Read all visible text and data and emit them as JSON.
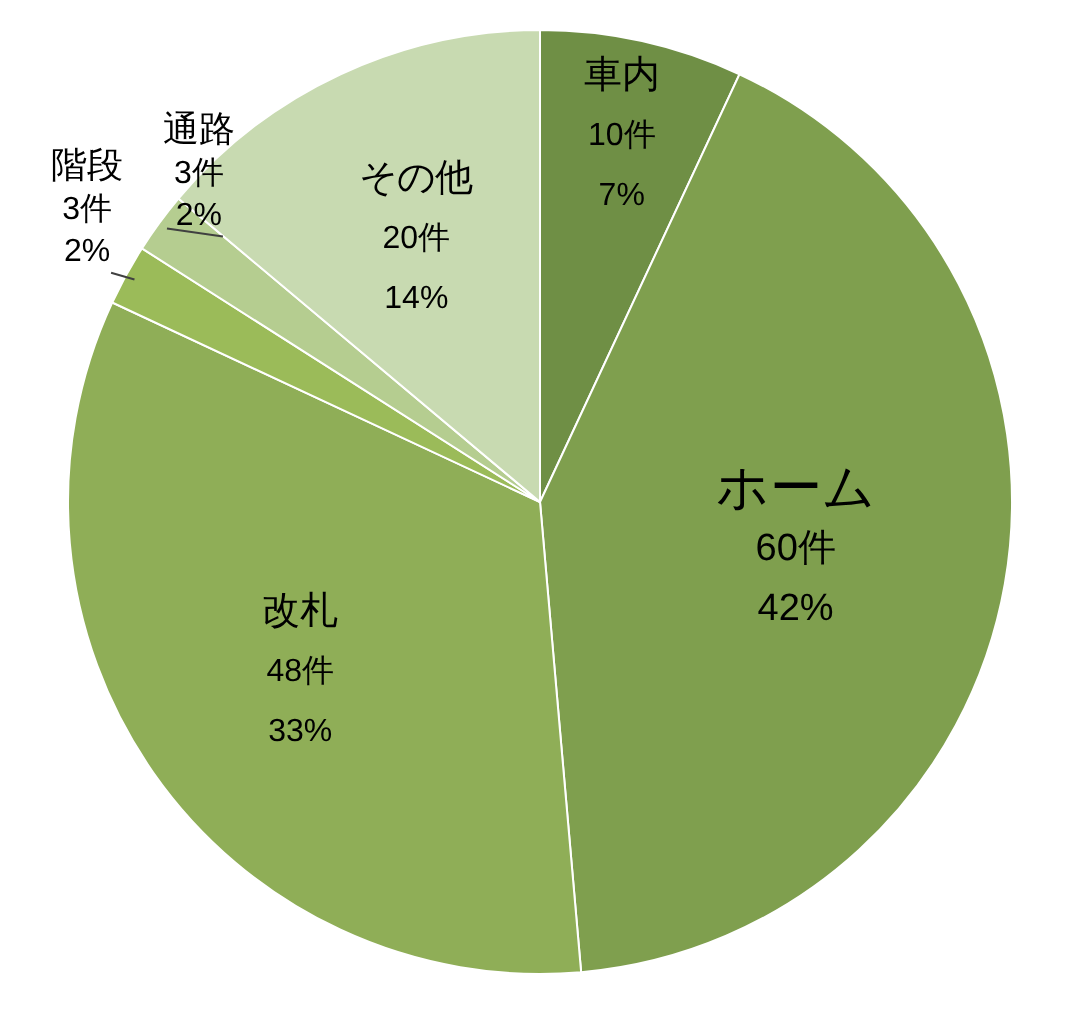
{
  "chart_data": {
    "type": "pie",
    "categories": [
      "車内",
      "ホーム",
      "改札",
      "階段",
      "通路",
      "その他"
    ],
    "values": [
      10,
      60,
      48,
      3,
      3,
      20
    ],
    "colors": [
      "#6f8f45",
      "#7f9f4e",
      "#8fae57",
      "#9bbb59",
      "#b5cd90",
      "#c8dab1"
    ],
    "value_labels": [
      "10件\n7%",
      "60件\n42%",
      "48件\n33%",
      "3件\n2%",
      "3件\n2%",
      "20件\n14%"
    ]
  }
}
